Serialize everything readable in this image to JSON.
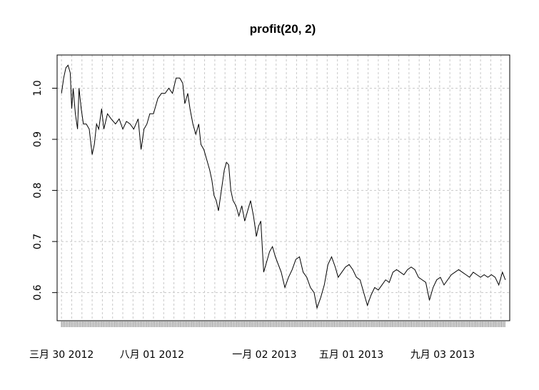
{
  "chart_data": {
    "type": "line",
    "title": "profit(20, 2)",
    "xlabel": "",
    "ylabel": "",
    "ylim": [
      0.545,
      1.065
    ],
    "y_ticks": [
      0.6,
      0.7,
      0.8,
      0.9,
      1.0
    ],
    "y_tick_labels": [
      "0.6",
      "0.7",
      "0.8",
      "0.9",
      "1.0"
    ],
    "x_range": [
      "2012-03-24",
      "2013-12-04"
    ],
    "x_tick_labels": [
      {
        "date": "2012-03-30",
        "label": "三月 30 2012"
      },
      {
        "date": "2012-08-01",
        "label": "八月 01 2012"
      },
      {
        "date": "2013-01-02",
        "label": "一月 02 2013"
      },
      {
        "date": "2013-05-01",
        "label": "五月 01 2013"
      },
      {
        "date": "2013-09-03",
        "label": "九月 03 2013"
      }
    ],
    "grid": true,
    "series": [
      {
        "color": "#000000",
        "points": [
          [
            "2012-03-30",
            0.99
          ],
          [
            "2012-04-02",
            1.02
          ],
          [
            "2012-04-05",
            1.04
          ],
          [
            "2012-04-08",
            1.045
          ],
          [
            "2012-04-11",
            1.03
          ],
          [
            "2012-04-13",
            0.96
          ],
          [
            "2012-04-15",
            1.0
          ],
          [
            "2012-04-18",
            0.95
          ],
          [
            "2012-04-21",
            0.92
          ],
          [
            "2012-04-23",
            1.0
          ],
          [
            "2012-04-26",
            0.96
          ],
          [
            "2012-04-29",
            0.93
          ],
          [
            "2012-05-03",
            0.93
          ],
          [
            "2012-05-07",
            0.92
          ],
          [
            "2012-05-11",
            0.87
          ],
          [
            "2012-05-14",
            0.89
          ],
          [
            "2012-05-17",
            0.93
          ],
          [
            "2012-05-20",
            0.92
          ],
          [
            "2012-05-24",
            0.96
          ],
          [
            "2012-05-27",
            0.92
          ],
          [
            "2012-06-01",
            0.95
          ],
          [
            "2012-06-06",
            0.94
          ],
          [
            "2012-06-12",
            0.93
          ],
          [
            "2012-06-17",
            0.94
          ],
          [
            "2012-06-22",
            0.92
          ],
          [
            "2012-06-27",
            0.935
          ],
          [
            "2012-07-02",
            0.93
          ],
          [
            "2012-07-07",
            0.92
          ],
          [
            "2012-07-13",
            0.94
          ],
          [
            "2012-07-17",
            0.88
          ],
          [
            "2012-07-21",
            0.92
          ],
          [
            "2012-07-25",
            0.93
          ],
          [
            "2012-07-29",
            0.95
          ],
          [
            "2012-08-03",
            0.95
          ],
          [
            "2012-08-09",
            0.98
          ],
          [
            "2012-08-14",
            0.99
          ],
          [
            "2012-08-19",
            0.99
          ],
          [
            "2012-08-24",
            1.0
          ],
          [
            "2012-08-29",
            0.99
          ],
          [
            "2012-09-03",
            1.02
          ],
          [
            "2012-09-08",
            1.02
          ],
          [
            "2012-09-12",
            1.01
          ],
          [
            "2012-09-15",
            0.97
          ],
          [
            "2012-09-19",
            0.99
          ],
          [
            "2012-09-22",
            0.96
          ],
          [
            "2012-09-26",
            0.93
          ],
          [
            "2012-09-30",
            0.91
          ],
          [
            "2012-10-04",
            0.93
          ],
          [
            "2012-10-07",
            0.89
          ],
          [
            "2012-10-11",
            0.88
          ],
          [
            "2012-10-15",
            0.86
          ],
          [
            "2012-10-19",
            0.84
          ],
          [
            "2012-10-22",
            0.82
          ],
          [
            "2012-10-25",
            0.79
          ],
          [
            "2012-10-28",
            0.78
          ],
          [
            "2012-10-31",
            0.76
          ],
          [
            "2012-11-04",
            0.8
          ],
          [
            "2012-11-08",
            0.84
          ],
          [
            "2012-11-11",
            0.855
          ],
          [
            "2012-11-14",
            0.85
          ],
          [
            "2012-11-17",
            0.8
          ],
          [
            "2012-11-20",
            0.78
          ],
          [
            "2012-11-24",
            0.77
          ],
          [
            "2012-11-28",
            0.75
          ],
          [
            "2012-12-02",
            0.77
          ],
          [
            "2012-12-06",
            0.74
          ],
          [
            "2012-12-10",
            0.76
          ],
          [
            "2012-12-14",
            0.78
          ],
          [
            "2012-12-18",
            0.75
          ],
          [
            "2012-12-22",
            0.71
          ],
          [
            "2012-12-25",
            0.73
          ],
          [
            "2012-12-28",
            0.74
          ],
          [
            "2013-01-01",
            0.64
          ],
          [
            "2013-01-05",
            0.66
          ],
          [
            "2013-01-09",
            0.68
          ],
          [
            "2013-01-13",
            0.69
          ],
          [
            "2013-01-17",
            0.67
          ],
          [
            "2013-01-21",
            0.655
          ],
          [
            "2013-01-25",
            0.64
          ],
          [
            "2013-01-30",
            0.61
          ],
          [
            "2013-02-04",
            0.63
          ],
          [
            "2013-02-09",
            0.645
          ],
          [
            "2013-02-14",
            0.665
          ],
          [
            "2013-02-19",
            0.67
          ],
          [
            "2013-02-24",
            0.64
          ],
          [
            "2013-03-01",
            0.63
          ],
          [
            "2013-03-06",
            0.61
          ],
          [
            "2013-03-11",
            0.6
          ],
          [
            "2013-03-15",
            0.57
          ],
          [
            "2013-03-20",
            0.59
          ],
          [
            "2013-03-25",
            0.615
          ],
          [
            "2013-03-30",
            0.655
          ],
          [
            "2013-04-04",
            0.67
          ],
          [
            "2013-04-09",
            0.65
          ],
          [
            "2013-04-13",
            0.63
          ],
          [
            "2013-04-18",
            0.64
          ],
          [
            "2013-04-23",
            0.65
          ],
          [
            "2013-04-28",
            0.655
          ],
          [
            "2013-05-03",
            0.645
          ],
          [
            "2013-05-08",
            0.63
          ],
          [
            "2013-05-13",
            0.625
          ],
          [
            "2013-05-18",
            0.6
          ],
          [
            "2013-05-23",
            0.575
          ],
          [
            "2013-05-28",
            0.595
          ],
          [
            "2013-06-02",
            0.61
          ],
          [
            "2013-06-07",
            0.605
          ],
          [
            "2013-06-12",
            0.615
          ],
          [
            "2013-06-17",
            0.625
          ],
          [
            "2013-06-22",
            0.62
          ],
          [
            "2013-06-27",
            0.64
          ],
          [
            "2013-07-02",
            0.645
          ],
          [
            "2013-07-07",
            0.64
          ],
          [
            "2013-07-12",
            0.635
          ],
          [
            "2013-07-17",
            0.645
          ],
          [
            "2013-07-22",
            0.65
          ],
          [
            "2013-07-27",
            0.645
          ],
          [
            "2013-08-01",
            0.63
          ],
          [
            "2013-08-06",
            0.625
          ],
          [
            "2013-08-11",
            0.62
          ],
          [
            "2013-08-16",
            0.585
          ],
          [
            "2013-08-21",
            0.61
          ],
          [
            "2013-08-26",
            0.625
          ],
          [
            "2013-08-31",
            0.63
          ],
          [
            "2013-09-05",
            0.615
          ],
          [
            "2013-09-10",
            0.625
          ],
          [
            "2013-09-15",
            0.635
          ],
          [
            "2013-09-20",
            0.64
          ],
          [
            "2013-09-25",
            0.645
          ],
          [
            "2013-09-30",
            0.64
          ],
          [
            "2013-10-05",
            0.635
          ],
          [
            "2013-10-10",
            0.63
          ],
          [
            "2013-10-15",
            0.64
          ],
          [
            "2013-10-20",
            0.635
          ],
          [
            "2013-10-25",
            0.63
          ],
          [
            "2013-10-30",
            0.635
          ],
          [
            "2013-11-04",
            0.63
          ],
          [
            "2013-11-09",
            0.635
          ],
          [
            "2013-11-14",
            0.63
          ],
          [
            "2013-11-19",
            0.615
          ],
          [
            "2013-11-24",
            0.64
          ],
          [
            "2013-11-28",
            0.625
          ]
        ]
      }
    ]
  }
}
